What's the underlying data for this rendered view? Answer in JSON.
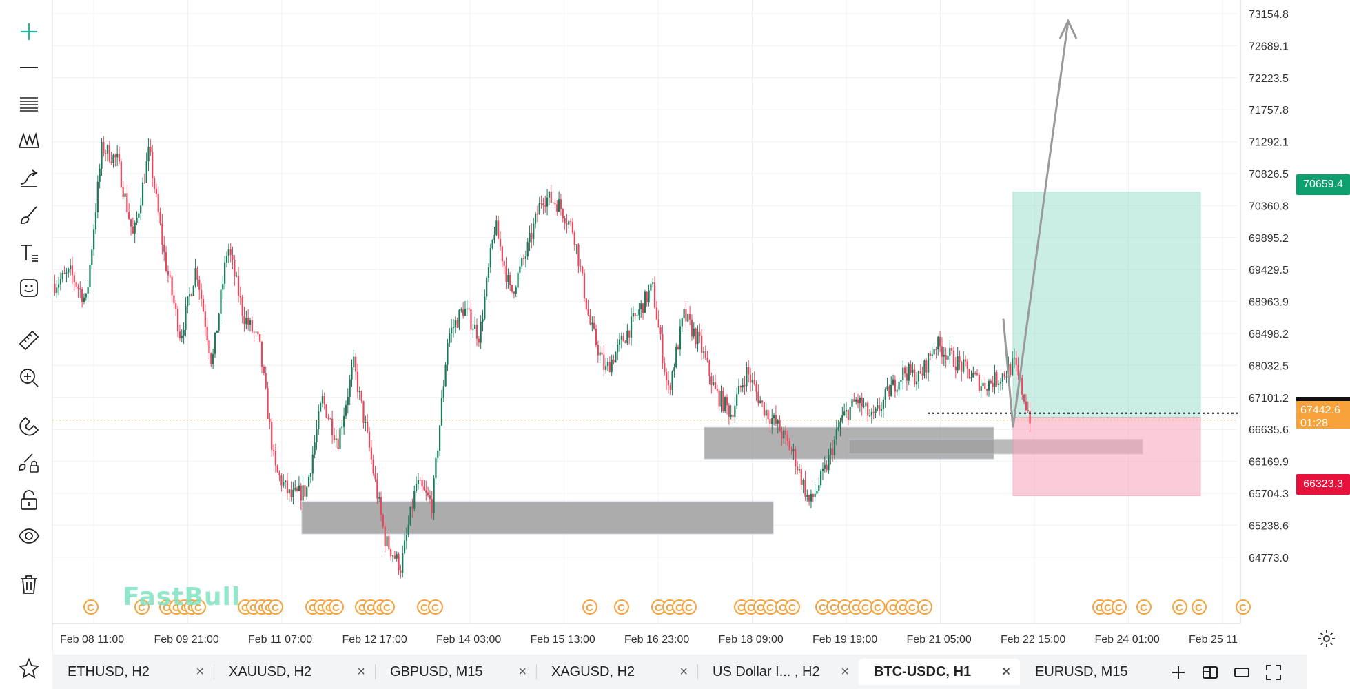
{
  "toolbar": {
    "tools": [
      {
        "name": "crosshair-tool",
        "icon": "crosshair-icon"
      },
      {
        "name": "trend-line-tool",
        "icon": "horizontal-line-icon"
      },
      {
        "name": "fib-tool",
        "icon": "fibonacci-icon"
      },
      {
        "name": "pattern-tool",
        "icon": "pattern-icon"
      },
      {
        "name": "projection-tool",
        "icon": "arrow-path-icon"
      },
      {
        "name": "brush-tool",
        "icon": "brush-icon"
      },
      {
        "name": "text-tool",
        "icon": "text-icon"
      },
      {
        "name": "emoji-tool",
        "icon": "emoji-icon"
      },
      {
        "name": "ruler-tool",
        "icon": "ruler-icon"
      },
      {
        "name": "zoom-tool",
        "icon": "zoom-in-icon"
      },
      {
        "name": "magnet-tool",
        "icon": "magnet-icon"
      },
      {
        "name": "lock-drawing-tool",
        "icon": "lock-brush-icon"
      },
      {
        "name": "unlock-tool",
        "icon": "unlock-icon"
      },
      {
        "name": "visibility-tool",
        "icon": "eye-icon"
      },
      {
        "name": "delete-tool",
        "icon": "trash-icon"
      }
    ],
    "favorite_icon": "star-icon"
  },
  "chart": {
    "accent_color": "#26a69a",
    "watermark": "FastBull",
    "price_axis_labels": [
      "73154.8",
      "72689.1",
      "72223.5",
      "71757.8",
      "71292.1",
      "70826.5",
      "70360.8",
      "69895.2",
      "69429.5",
      "68963.9",
      "68498.2",
      "68032.5",
      "67101.2",
      "66635.6",
      "66169.9",
      "65704.3",
      "65238.6",
      "64773.0"
    ],
    "time_axis_labels": [
      "Feb 08 11:00",
      "Feb 09 21:00",
      "Feb 11 07:00",
      "Feb 12 17:00",
      "Feb 14 03:00",
      "Feb 15 13:00",
      "Feb 16 23:00",
      "Feb 18 09:00",
      "Feb 19 19:00",
      "Feb 21 05:00",
      "Feb 22 15:00",
      "Feb 24 01:00",
      "Feb 25 11"
    ],
    "target_price_label": "70659.4",
    "current_price_label": "67442.6",
    "countdown_label": "01:28",
    "stop_price_label": "66323.3",
    "up_color": "#1b7a5a",
    "down_color": "#e8475e",
    "target_color": "#0e9f6e",
    "stop_color": "#e8113b",
    "current_color": "#f7a23b",
    "event_marker_glyph": "C"
  },
  "chart_data": {
    "type": "candlestick",
    "symbol": "BTC-USDC, H1",
    "y_range": [
      64500,
      73400
    ],
    "x_labels": [
      "Feb 08 11:00",
      "Feb 09 21:00",
      "Feb 11 07:00",
      "Feb 12 17:00",
      "Feb 14 03:00",
      "Feb 15 13:00",
      "Feb 16 23:00",
      "Feb 18 09:00",
      "Feb 19 19:00",
      "Feb 21 05:00",
      "Feb 22 15:00",
      "Feb 24 01:00",
      "Feb 25 11"
    ],
    "close_path": [
      69350,
      69500,
      69100,
      71300,
      71100,
      70000,
      71250,
      69700,
      68600,
      69600,
      68200,
      69900,
      68900,
      68500,
      66700,
      66300,
      66400,
      67700,
      67100,
      68200,
      67000,
      65700,
      65300,
      66500,
      66200,
      68600,
      69000,
      68600,
      70200,
      69200,
      69800,
      70600,
      70500,
      70100,
      68800,
      68100,
      68500,
      68900,
      69300,
      67800,
      68900,
      68500,
      67800,
      67500,
      68100,
      67600,
      67300,
      66900,
      66200,
      66700,
      67400,
      67700,
      67400,
      67800,
      68100,
      68000,
      68500,
      68300,
      68100,
      67900,
      68000,
      68200,
      67442
    ],
    "long_position": {
      "entry": 67442.6,
      "target": 70659.4,
      "stop": 66323.3
    },
    "current_price": 67442.6
  },
  "tabs": [
    {
      "label": "ETHUSD, H2",
      "active": false
    },
    {
      "label": "XAUUSD, H2",
      "active": false
    },
    {
      "label": "GBPUSD, M15",
      "active": false
    },
    {
      "label": "XAGUSD, H2",
      "active": false
    },
    {
      "label": "US Dollar I... , H2",
      "active": false
    },
    {
      "label": "BTC-USDC, H1",
      "active": true
    },
    {
      "label": "EURUSD, M15",
      "active": false
    }
  ],
  "tabbar_controls": {
    "close_glyph": "×",
    "add_icon": "plus-icon",
    "layout_icon": "layout-icon",
    "window_icon": "window-icon",
    "fullscreen_icon": "fullscreen-icon"
  }
}
